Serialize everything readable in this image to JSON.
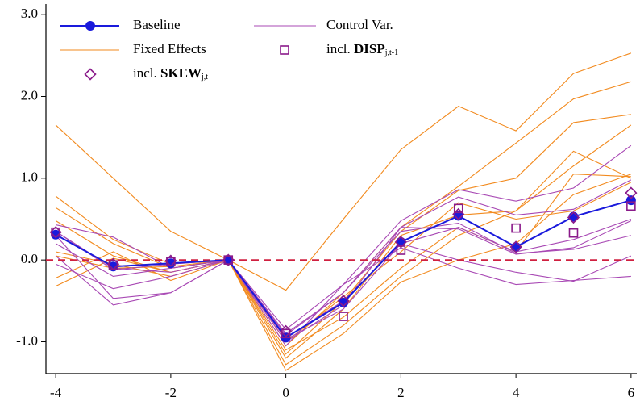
{
  "chart_data": {
    "type": "line",
    "x": [
      -4,
      -3,
      -2,
      -1,
      0,
      1,
      2,
      3,
      4,
      5,
      6
    ],
    "xlim": [
      -4.17,
      6.1
    ],
    "xticks": [
      -4,
      -2,
      0,
      2,
      4,
      6
    ],
    "ylim": [
      -1.39,
      3.13
    ],
    "yticks": [
      {
        "value": -1,
        "label": "-1.0"
      },
      {
        "value": 0,
        "label": "0.0"
      },
      {
        "value": 1,
        "label": "1.0"
      },
      {
        "value": 2,
        "label": "2.0"
      },
      {
        "value": 3,
        "label": "3.0"
      }
    ],
    "reference_line": {
      "value": 0,
      "color": "#d02040"
    },
    "series": [
      {
        "name": "Baseline",
        "color": "#1a1adc",
        "marker": "circle",
        "values": [
          0.31,
          -0.08,
          -0.04,
          0,
          -0.95,
          -0.52,
          0.22,
          0.54,
          0.16,
          0.53,
          0.73
        ]
      },
      {
        "name": "Fixed Effects",
        "color": "#f28a1e",
        "lines": [
          [
            1.65,
            1.0,
            0.35,
            0,
            -0.37,
            0.5,
            1.35,
            1.88,
            1.58,
            2.28,
            2.53
          ],
          [
            0.78,
            0.25,
            -0.05,
            0,
            -1.05,
            -0.4,
            0.4,
            0.9,
            1.43,
            1.97,
            2.18
          ],
          [
            0.64,
            0.2,
            -0.1,
            0,
            -1.15,
            -0.5,
            0.35,
            0.85,
            1.0,
            1.68,
            1.78
          ],
          [
            0.48,
            0.05,
            -0.15,
            0,
            -1.2,
            -0.6,
            0.3,
            0.55,
            0.6,
            1.15,
            1.65
          ],
          [
            0.1,
            -0.05,
            -0.2,
            0,
            -1.28,
            -0.8,
            -0.2,
            0.3,
            0.6,
            1.33,
            1.0
          ],
          [
            -0.22,
            0.1,
            -0.25,
            0,
            -1.35,
            -0.9,
            -0.27,
            0.0,
            0.2,
            0.8,
            1.05
          ],
          [
            -0.32,
            0.02,
            -0.15,
            0,
            -1.1,
            -0.7,
            -0.1,
            0.4,
            0.1,
            1.05,
            1.02
          ],
          [
            0.05,
            -0.1,
            -0.08,
            0,
            -1.0,
            -0.45,
            0.1,
            0.7,
            0.5,
            0.6,
            0.95
          ]
        ]
      },
      {
        "name": "Control Var.",
        "color": "#a848b4",
        "lines": [
          [
            0.43,
            0.28,
            -0.1,
            0,
            -0.85,
            -0.3,
            0.48,
            0.86,
            0.72,
            0.88,
            1.4
          ],
          [
            0.35,
            -0.12,
            -0.05,
            0,
            -0.9,
            -0.4,
            0.4,
            0.77,
            0.55,
            0.62,
            0.98
          ],
          [
            0.3,
            -0.47,
            -0.4,
            0,
            -0.97,
            -0.6,
            0.2,
            0.4,
            0.1,
            0.25,
            0.5
          ],
          [
            0.05,
            -0.55,
            -0.4,
            0,
            -1.0,
            -0.55,
            0.4,
            0.38,
            0.07,
            0.15,
            0.48
          ],
          [
            -0.05,
            -0.35,
            -0.2,
            0,
            -1.05,
            -0.3,
            0.15,
            -0.1,
            -0.3,
            -0.25,
            -0.2
          ],
          [
            0.35,
            -0.1,
            -0.15,
            0,
            -0.92,
            -0.4,
            0.35,
            0.45,
            0.08,
            0.13,
            0.3
          ],
          [
            0.2,
            -0.2,
            -0.1,
            0,
            -0.95,
            -0.5,
            0.2,
            0.0,
            -0.15,
            -0.26,
            0.05
          ]
        ]
      },
      {
        "name_parts": [
          "incl.",
          "DISP",
          "j,t-1"
        ],
        "color": "#8a1a8a",
        "marker": "square",
        "values": [
          0.34,
          -0.06,
          -0.02,
          0,
          -0.9,
          -0.69,
          0.12,
          0.63,
          0.39,
          0.33,
          0.66
        ]
      },
      {
        "name_parts": [
          "incl.",
          "SKEW",
          "j,t"
        ],
        "color": "#8a1a8a",
        "marker": "diamond",
        "values": [
          0.34,
          -0.05,
          -0.01,
          0,
          -0.87,
          -0.5,
          0.22,
          0.56,
          0.16,
          0.52,
          0.82
        ]
      }
    ]
  }
}
